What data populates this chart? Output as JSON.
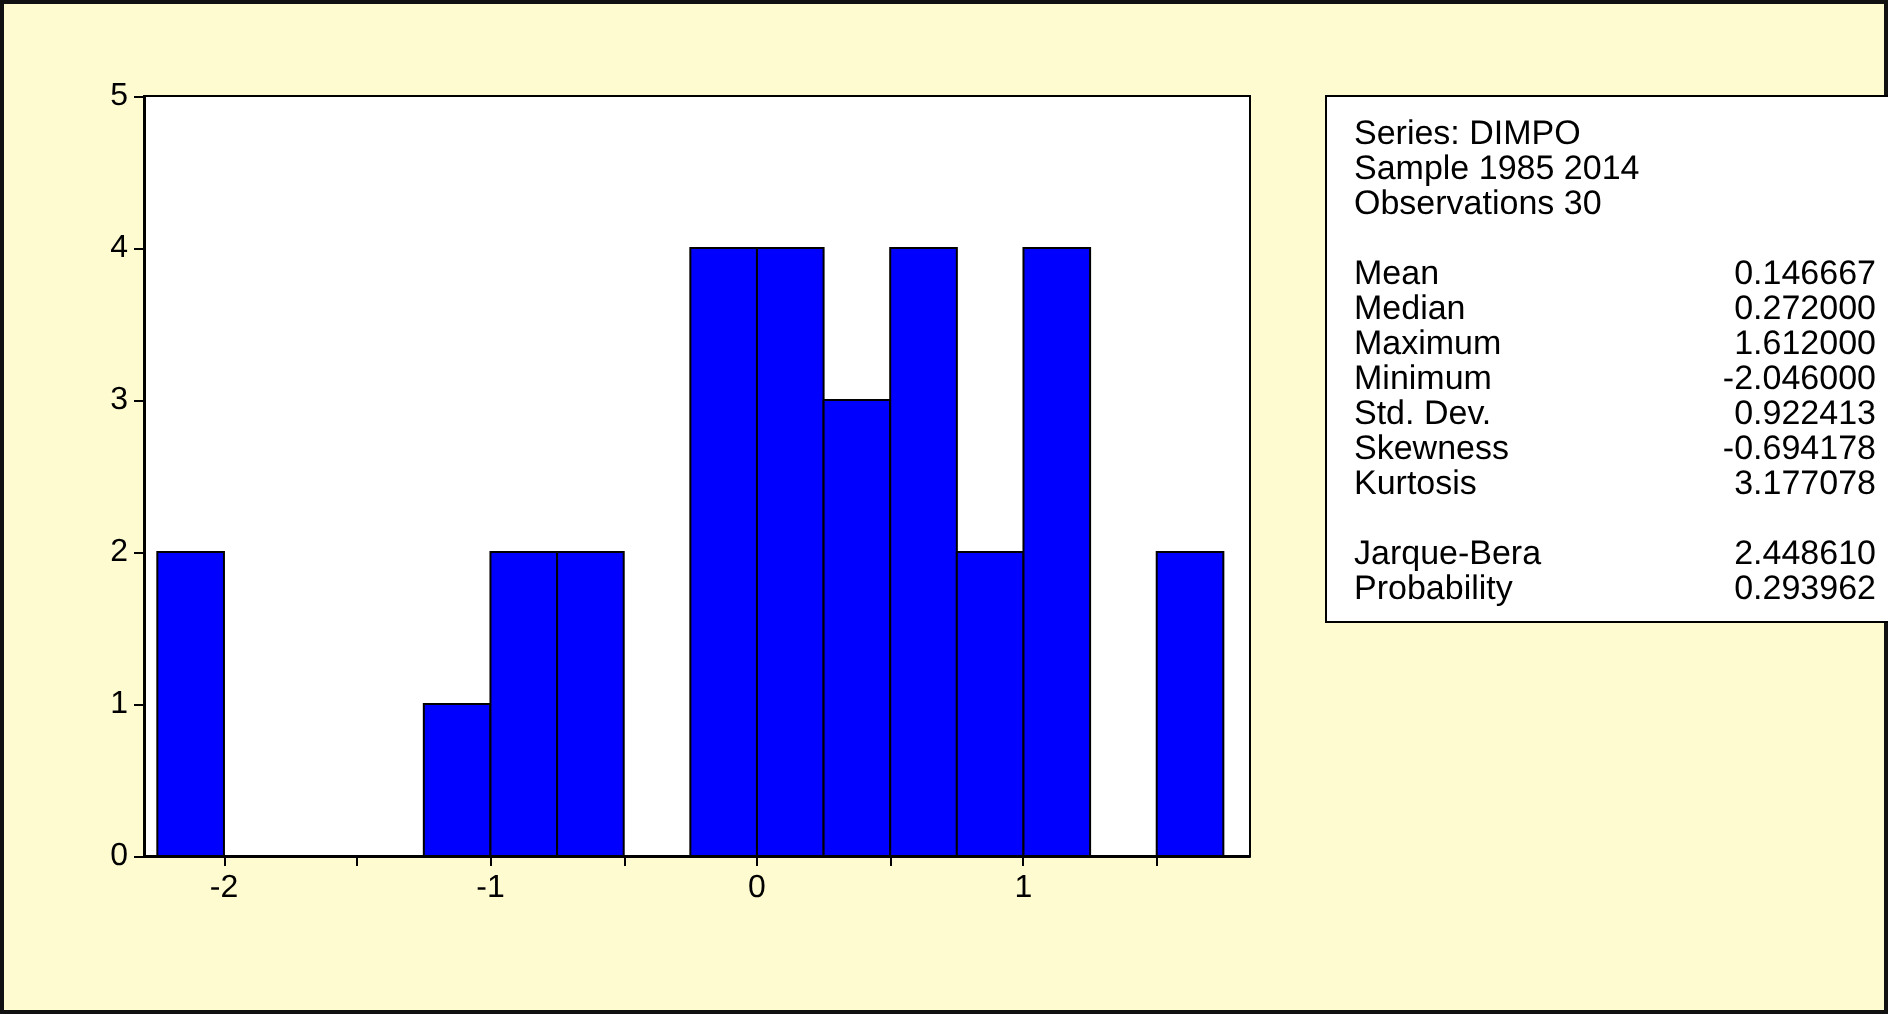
{
  "chart_data": {
    "type": "histogram",
    "bins": [
      -2.25,
      -2,
      -1.75,
      -1.5,
      -1.25,
      -1,
      -0.75,
      -0.5,
      -0.25,
      0,
      0.25,
      0.5,
      0.75,
      1,
      1.25,
      1.5,
      1.75
    ],
    "values": [
      2,
      0,
      0,
      0,
      1,
      2,
      2,
      0,
      4,
      4,
      3,
      4,
      2,
      4,
      0,
      2
    ],
    "color": "#0000ff",
    "xlim": [
      -2.3,
      1.85
    ],
    "xticks": [
      -2,
      {
        "value": -1.5,
        "label": null
      },
      -1,
      {
        "value": -0.5,
        "label": null
      },
      0,
      {
        "value": 0.5,
        "label": null
      },
      1,
      {
        "value": 1.5,
        "label": null
      }
    ],
    "ylim": [
      0,
      5
    ],
    "yticks": [
      0,
      1,
      2,
      3,
      4,
      5
    ],
    "annotations": [
      "Series: DIMPO",
      "Sample 1985 2014",
      "Observations 30",
      "Mean\t0.146667",
      "Median\t0.272000",
      "Maximum\t1.612000",
      "Minimum\t-2.046000",
      "Std. Dev.\t0.922413",
      "Skewness\t-0.694178",
      "Kurtosis\t3.177078",
      "Jarque-Bera\t2.448610",
      "Probability\t0.293962"
    ]
  }
}
